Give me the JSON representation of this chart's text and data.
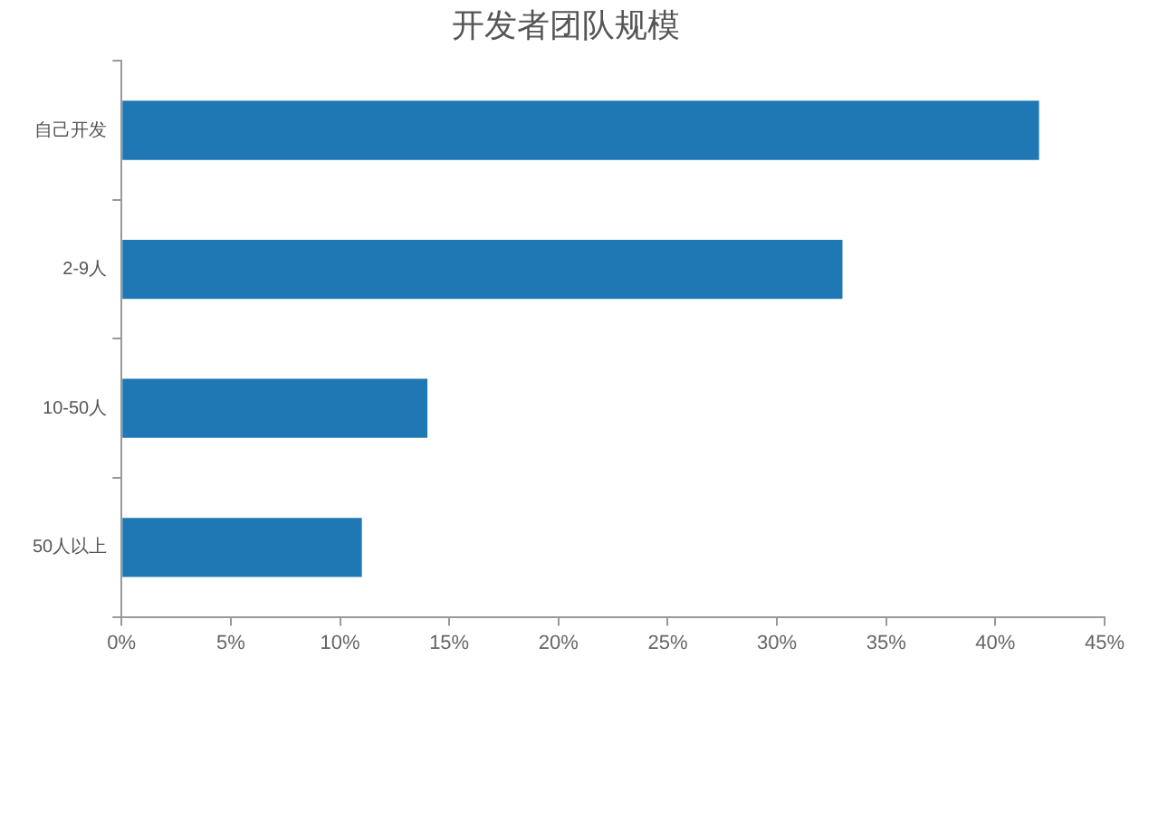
{
  "chart_data": {
    "type": "bar",
    "orientation": "horizontal",
    "title": "开发者团队规模",
    "categories": [
      "自己开发",
      "2-9人",
      "10-50人",
      "50人以上"
    ],
    "values": [
      42,
      33,
      14,
      11
    ],
    "color": "#1f77b4",
    "xlim": [
      0,
      45
    ],
    "xticks": [
      {
        "value": 0,
        "label": "0%"
      },
      {
        "value": 5,
        "label": "5%"
      },
      {
        "value": 10,
        "label": "10%"
      },
      {
        "value": 15,
        "label": "15%"
      },
      {
        "value": 20,
        "label": "20%"
      },
      {
        "value": 25,
        "label": "25%"
      },
      {
        "value": 30,
        "label": "30%"
      },
      {
        "value": 35,
        "label": "35%"
      },
      {
        "value": 40,
        "label": "40%"
      },
      {
        "value": 45,
        "label": "45%"
      }
    ],
    "grid": false,
    "legend": false
  }
}
